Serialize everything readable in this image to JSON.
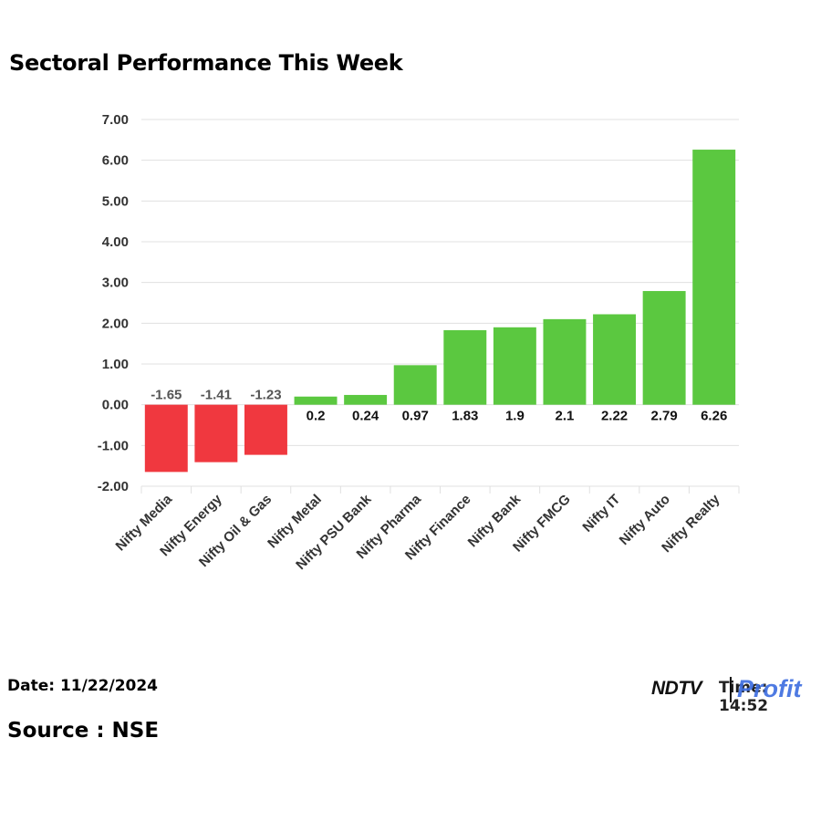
{
  "header": {
    "title": "Sectoral Performance This Week"
  },
  "footer": {
    "date": "Date: 11/22/2024",
    "source": "Source : NSE",
    "time_text": "Time: 14:52",
    "brand_ndtv": "NDTV",
    "brand_profit": "Profit"
  },
  "colors": {
    "positive": "#5bc840",
    "negative": "#f0383f",
    "grid": "#e0e0e0",
    "axis_text": "#333333"
  },
  "chart_data": {
    "type": "bar",
    "title": "Sectoral Performance This Week",
    "categories": [
      "Nifty Media",
      "Nifty Energy",
      "Nifty Oil & Gas",
      "Nifty Metal",
      "Nifty PSU Bank",
      "Nifty Pharma",
      "Nifty Finance",
      "Nifty Bank",
      "Nifty FMCG",
      "Nifty IT",
      "Nifty Auto",
      "Nifty Realty"
    ],
    "values": [
      -1.65,
      -1.41,
      -1.23,
      0.2,
      0.24,
      0.97,
      1.83,
      1.9,
      2.1,
      2.22,
      2.79,
      6.26
    ],
    "value_labels": [
      "-1.65",
      "-1.41",
      "-1.23",
      "0.2",
      "0.24",
      "0.97",
      "1.83",
      "1.9",
      "2.1",
      "2.22",
      "2.79",
      "6.26"
    ],
    "ylim": [
      -2,
      7
    ],
    "yticks": [
      "-2.00",
      "-1.00",
      "0.00",
      "1.00",
      "2.00",
      "3.00",
      "4.00",
      "5.00",
      "6.00",
      "7.00"
    ],
    "xlabel": "",
    "ylabel": "",
    "grid": true
  }
}
